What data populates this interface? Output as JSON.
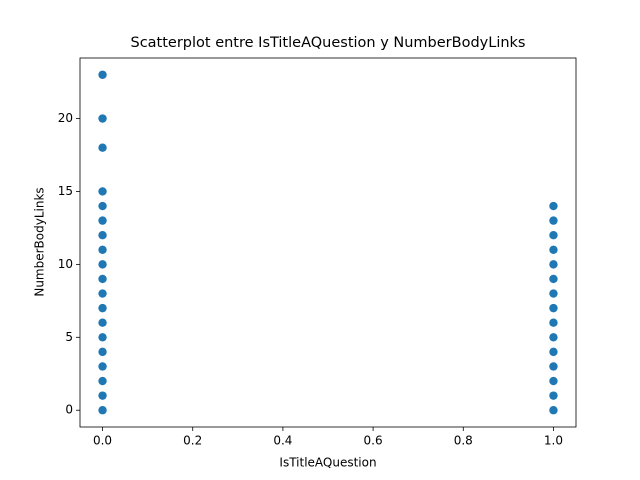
{
  "chart_data": {
    "type": "scatter",
    "title": "Scatterplot entre IsTitleAQuestion y NumberBodyLinks",
    "x_label": "IsTitleAQuestion",
    "y_label": "NumberBodyLinks",
    "x": [
      0,
      0,
      0,
      0,
      0,
      0,
      0,
      0,
      0,
      0,
      0,
      0,
      0,
      0,
      0,
      0,
      0,
      0,
      0,
      1,
      1,
      1,
      1,
      1,
      1,
      1,
      1,
      1,
      1,
      1,
      1,
      1,
      1,
      1
    ],
    "y": [
      0,
      1,
      2,
      3,
      4,
      5,
      6,
      7,
      8,
      9,
      10,
      11,
      12,
      13,
      14,
      15,
      18,
      20,
      23,
      0,
      1,
      2,
      3,
      4,
      5,
      6,
      7,
      8,
      9,
      10,
      11,
      12,
      13,
      14
    ],
    "color": "#1f77b4",
    "xlim": [
      -0.05,
      1.05
    ],
    "ylim": [
      -1.15,
      24.15
    ],
    "xticks": [
      {
        "value": 0,
        "label": "0.0"
      },
      0.2,
      0.4,
      0.6,
      0.8,
      {
        "value": 1,
        "label": "1.0"
      }
    ],
    "yticks": [
      0,
      5,
      10,
      15,
      20
    ]
  }
}
